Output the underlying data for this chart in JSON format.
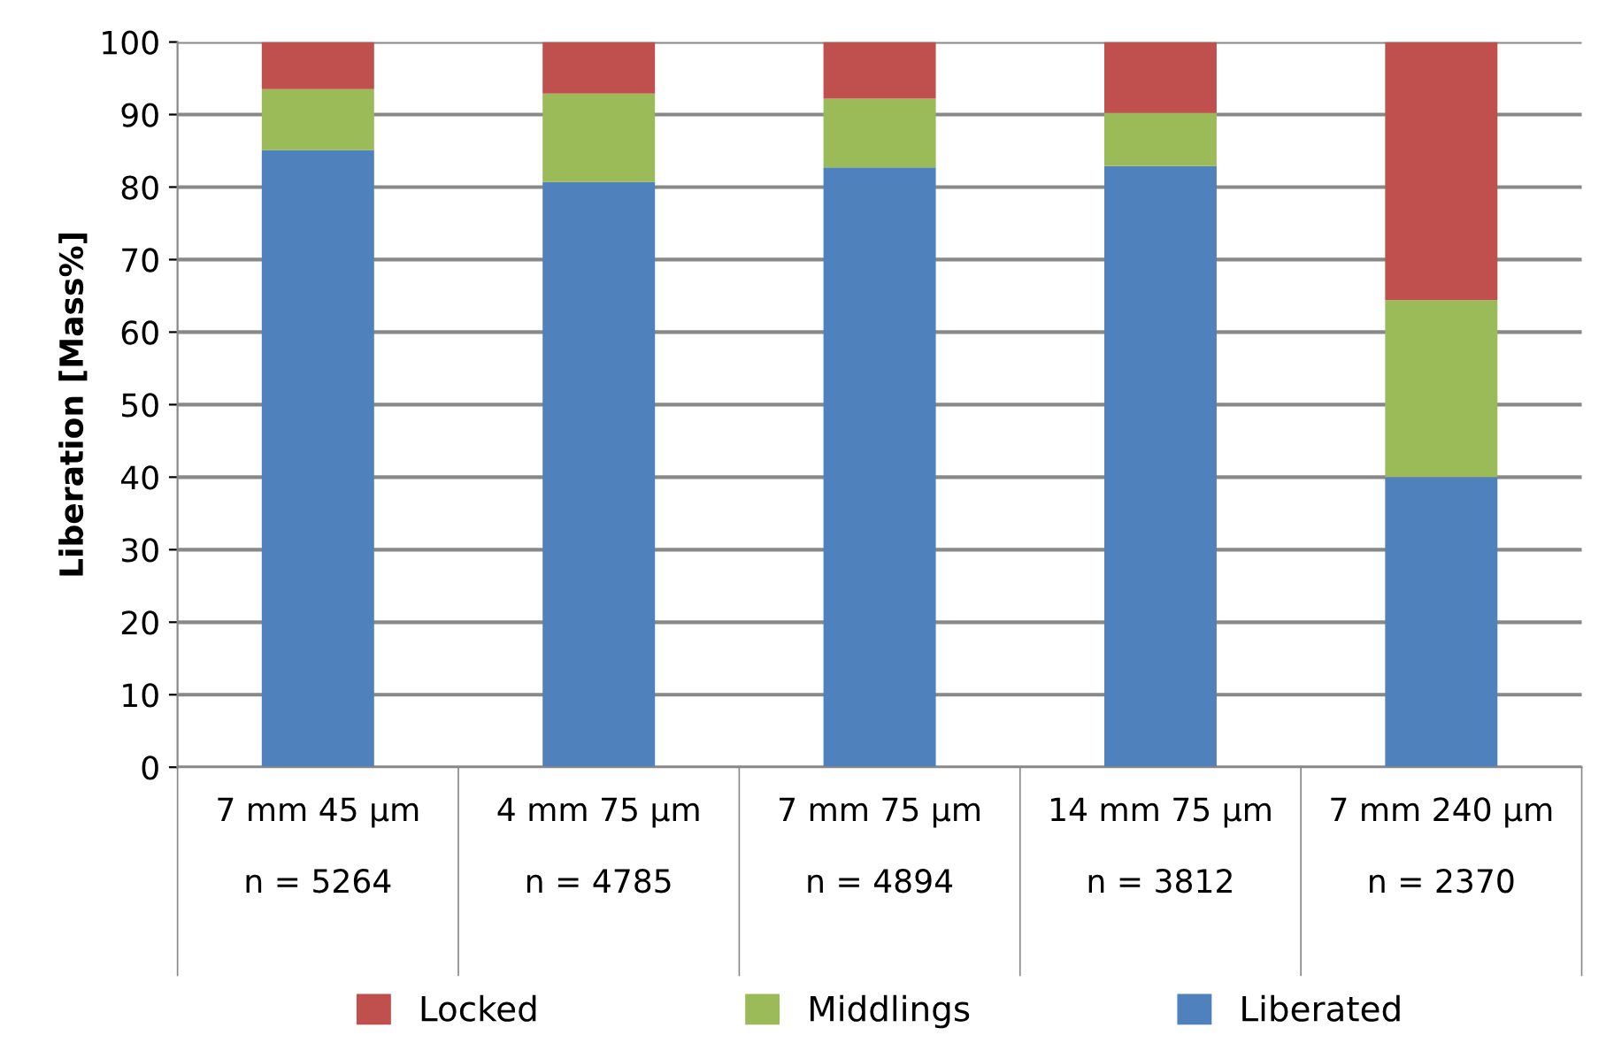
{
  "chart_data": {
    "type": "bar",
    "stacked": true,
    "ylabel": "Liberation [Mass%]",
    "categories": [
      "7 mm 45 µm\n\nn = 5264",
      "4 mm 75 µm\n\nn = 4785",
      "7 mm 75 µm\n\nn = 4894",
      "14 mm 75 µm\n\nn = 3812",
      "7 mm 240 µm\n\nn = 2370"
    ],
    "series": [
      {
        "name": "Liberated",
        "color": "#4f81bd",
        "values": [
          85.1,
          80.7,
          82.7,
          82.9,
          40.0
        ]
      },
      {
        "name": "Middlings",
        "color": "#9bbb59",
        "values": [
          8.4,
          12.2,
          9.5,
          7.3,
          24.4
        ]
      },
      {
        "name": "Locked",
        "color": "#c0504d",
        "values": [
          6.5,
          7.1,
          7.8,
          9.8,
          35.6
        ]
      }
    ],
    "ylim": [
      0,
      100
    ],
    "yticks": [
      0,
      10,
      20,
      30,
      40,
      50,
      60,
      70,
      80,
      90,
      100
    ],
    "grid": "y",
    "legend": "bottom"
  }
}
